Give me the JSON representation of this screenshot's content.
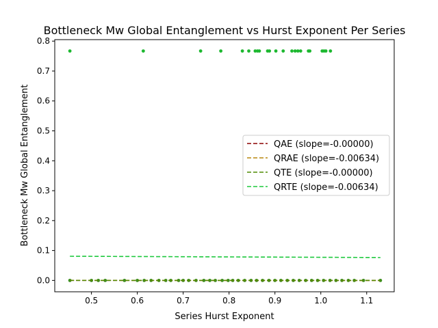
{
  "chart_data": {
    "type": "scatter",
    "title": "Bottleneck Mw Global Entanglement vs Hurst Exponent Per Series",
    "xlabel": "Series Hurst Exponent",
    "ylabel": "Bottleneck Mw Global Entanglement",
    "xlim": [
      0.42,
      1.16
    ],
    "ylim": [
      -0.038,
      0.805
    ],
    "xticks": [
      0.5,
      0.6,
      0.7,
      0.8,
      0.9,
      1.0,
      1.1
    ],
    "xtick_labels": [
      "0.5",
      "0.6",
      "0.7",
      "0.8",
      "0.9",
      "1.0",
      "1.1"
    ],
    "yticks": [
      0.0,
      0.1,
      0.2,
      0.3,
      0.4,
      0.5,
      0.6,
      0.7,
      0.8
    ],
    "ytick_labels": [
      "0.0",
      "0.1",
      "0.2",
      "0.3",
      "0.4",
      "0.5",
      "0.6",
      "0.7",
      "0.8"
    ],
    "grid": false,
    "legend_position": "center-right",
    "scatter": [
      {
        "color": "#1db830",
        "x": [
          0.453,
          0.613,
          0.738,
          0.782,
          0.829,
          0.843,
          0.857,
          0.862,
          0.866,
          0.884,
          0.888,
          0.902,
          0.918,
          0.937,
          0.944,
          0.95,
          0.956,
          0.973,
          0.976,
          1.003,
          1.007,
          1.011,
          1.021
        ],
        "y": [
          0.767,
          0.767,
          0.767,
          0.767,
          0.767,
          0.767,
          0.767,
          0.767,
          0.767,
          0.767,
          0.767,
          0.767,
          0.767,
          0.767,
          0.767,
          0.767,
          0.767,
          0.767,
          0.767,
          0.767,
          0.767,
          0.767,
          0.767
        ]
      },
      {
        "color": "#3a8f20",
        "x": [
          0.453,
          0.5,
          0.515,
          0.53,
          0.572,
          0.6,
          0.615,
          0.63,
          0.647,
          0.662,
          0.673,
          0.69,
          0.7,
          0.712,
          0.728,
          0.745,
          0.758,
          0.77,
          0.785,
          0.798,
          0.808,
          0.82,
          0.834,
          0.848,
          0.86,
          0.873,
          0.887,
          0.9,
          0.913,
          0.927,
          0.94,
          0.953,
          0.967,
          0.98,
          0.993,
          1.006,
          1.02,
          1.033,
          1.046,
          1.06,
          1.073,
          1.093,
          1.13
        ],
        "y": [
          0,
          0,
          0,
          0,
          0,
          0,
          0,
          0,
          0,
          0,
          0,
          0,
          0,
          0,
          0,
          0,
          0,
          0,
          0,
          0,
          0,
          0,
          0,
          0,
          0,
          0,
          0,
          0,
          0,
          0,
          0,
          0,
          0,
          0,
          0,
          0,
          0,
          0,
          0,
          0,
          0,
          0,
          0
        ]
      }
    ],
    "series": [
      {
        "name": "QAE (slope=-0.00000)",
        "color": "#8b0000",
        "x": [
          0.453,
          1.13
        ],
        "y": [
          0.0,
          0.0
        ]
      },
      {
        "name": "QRAE (slope=-0.00634)",
        "color": "#b8860b",
        "x": [
          0.453,
          1.13
        ],
        "y": [
          0.0003,
          -0.0001
        ]
      },
      {
        "name": "QTE (slope=-0.00000)",
        "color": "#4f8a00",
        "x": [
          0.453,
          1.13
        ],
        "y": [
          0.0,
          0.0
        ]
      },
      {
        "name": "QRTE (slope=-0.00634)",
        "color": "#1cc83c",
        "x": [
          0.453,
          1.13
        ],
        "y": [
          0.0808,
          0.0765
        ]
      }
    ]
  }
}
